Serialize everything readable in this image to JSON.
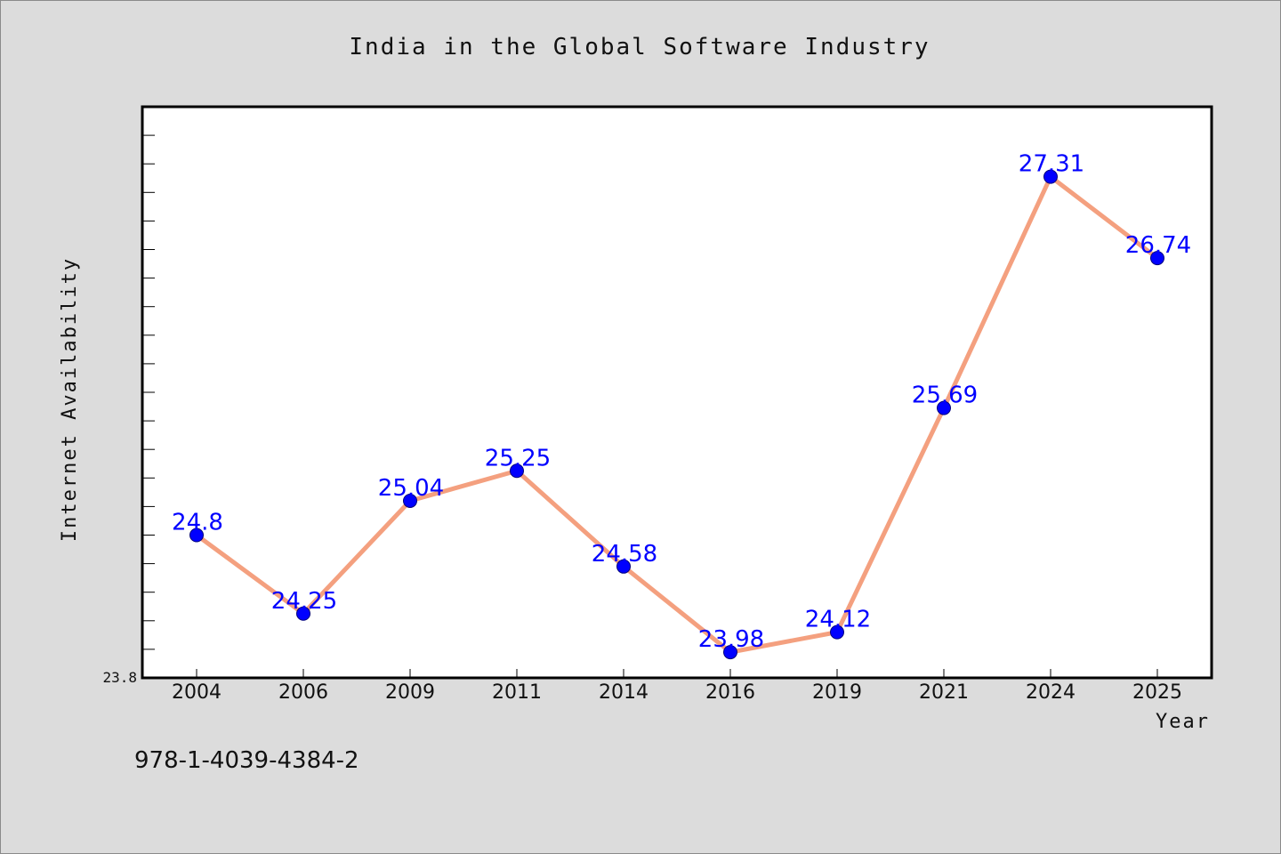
{
  "chart_data": {
    "type": "line",
    "title": "India in the Global Software Industry",
    "xlabel": "Year",
    "ylabel": "Internet Availability",
    "categories": [
      "2004",
      "2006",
      "2009",
      "2011",
      "2014",
      "2016",
      "2019",
      "2021",
      "2024",
      "2025"
    ],
    "values": [
      24.8,
      24.25,
      25.04,
      25.25,
      24.58,
      23.98,
      24.12,
      25.69,
      27.31,
      26.74
    ],
    "value_labels": [
      "24.8",
      "24.25",
      "25.04",
      "25.25",
      "24.58",
      "23.98",
      "24.12",
      "25.69",
      "27.31",
      "26.74"
    ],
    "ylim": [
      23.8,
      27.8
    ],
    "y_tick_labels": [
      "23.8"
    ],
    "grid": false,
    "legend": "none",
    "line_color": "#f4a07f",
    "marker_color": "#0000ff",
    "label_color": "#0000ff",
    "plot_background": "#ffffff",
    "figure_background": "#dcdcdc"
  },
  "footer": {
    "isbn": "978-1-4039-4384-2"
  }
}
